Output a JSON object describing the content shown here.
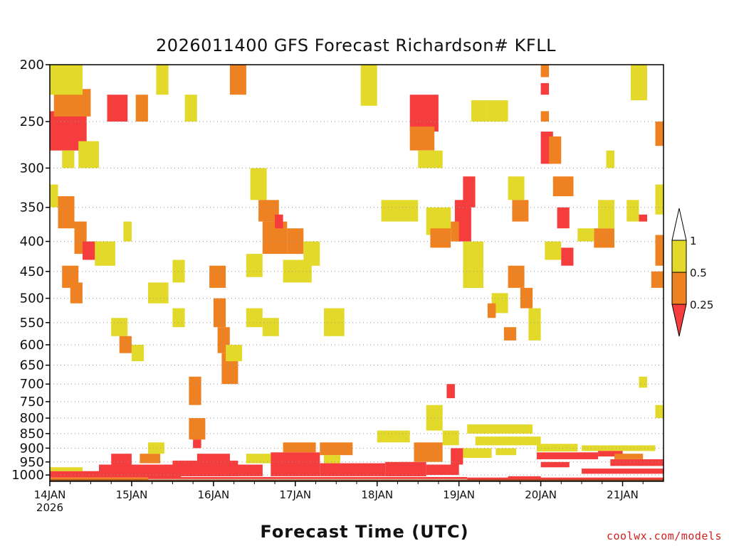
{
  "chart_data": {
    "type": "heatmap",
    "title": "2026011400 GFS Forecast Richardson# KFLL",
    "xlabel": "Forecast Time (UTC)",
    "ylabel": "",
    "x_start_label": "14JAN",
    "x_year_label": "2026",
    "x_ticks": [
      "14JAN",
      "15JAN",
      "16JAN",
      "17JAN",
      "18JAN",
      "19JAN",
      "20JAN",
      "21JAN"
    ],
    "x_range_days": [
      0,
      7.5
    ],
    "y_ticks": [
      200,
      250,
      300,
      350,
      400,
      450,
      500,
      550,
      600,
      650,
      700,
      750,
      800,
      850,
      900,
      950,
      1000
    ],
    "y_range_hpa": [
      200,
      1025
    ],
    "legend": {
      "placement": "right",
      "labels": [
        "1",
        "0.5",
        "0.25"
      ],
      "bins": [
        {
          "range": [
            0.5,
            1
          ],
          "color": "#e3d92b"
        },
        {
          "range": [
            0.25,
            0.5
          ],
          "color": "#ee8223"
        },
        {
          "range": [
            0,
            0.25
          ],
          "color": "#f53d3d"
        }
      ]
    },
    "colors": {
      "low": "#f53d3d",
      "mid": "#ee8223",
      "high": "#e3d92b",
      "ground": "#8a4b21",
      "grid": "#9a9a9a"
    },
    "cells": [
      {
        "t0": 0.0,
        "t1": 0.45,
        "p0": 240,
        "p1": 280,
        "c": "low"
      },
      {
        "t0": 0.05,
        "t1": 0.5,
        "p0": 220,
        "p1": 245,
        "c": "mid"
      },
      {
        "t0": 0.0,
        "t1": 0.4,
        "p0": 200,
        "p1": 225,
        "c": "high"
      },
      {
        "t0": 0.15,
        "t1": 0.3,
        "p0": 280,
        "p1": 300,
        "c": "high"
      },
      {
        "t0": 0.35,
        "t1": 0.6,
        "p0": 270,
        "p1": 300,
        "c": "high"
      },
      {
        "t0": 0.7,
        "t1": 0.95,
        "p0": 225,
        "p1": 250,
        "c": "low"
      },
      {
        "t0": 1.05,
        "t1": 1.2,
        "p0": 225,
        "p1": 250,
        "c": "mid"
      },
      {
        "t0": 1.3,
        "t1": 1.45,
        "p0": 200,
        "p1": 225,
        "c": "high"
      },
      {
        "t0": 1.65,
        "t1": 1.8,
        "p0": 225,
        "p1": 250,
        "c": "high"
      },
      {
        "t0": 2.2,
        "t1": 2.4,
        "p0": 200,
        "p1": 225,
        "c": "mid"
      },
      {
        "t0": 0.0,
        "t1": 0.1,
        "p0": 320,
        "p1": 350,
        "c": "high"
      },
      {
        "t0": 0.1,
        "t1": 0.3,
        "p0": 335,
        "p1": 380,
        "c": "mid"
      },
      {
        "t0": 0.3,
        "t1": 0.45,
        "p0": 370,
        "p1": 420,
        "c": "mid"
      },
      {
        "t0": 0.4,
        "t1": 0.6,
        "p0": 400,
        "p1": 430,
        "c": "low"
      },
      {
        "t0": 0.55,
        "t1": 0.8,
        "p0": 400,
        "p1": 440,
        "c": "high"
      },
      {
        "t0": 0.15,
        "t1": 0.35,
        "p0": 440,
        "p1": 480,
        "c": "mid"
      },
      {
        "t0": 0.25,
        "t1": 0.4,
        "p0": 470,
        "p1": 510,
        "c": "mid"
      },
      {
        "t0": 0.9,
        "t1": 1.0,
        "p0": 370,
        "p1": 400,
        "c": "high"
      },
      {
        "t0": 0.75,
        "t1": 0.95,
        "p0": 540,
        "p1": 580,
        "c": "high"
      },
      {
        "t0": 0.85,
        "t1": 1.0,
        "p0": 580,
        "p1": 620,
        "c": "mid"
      },
      {
        "t0": 1.0,
        "t1": 1.15,
        "p0": 600,
        "p1": 640,
        "c": "high"
      },
      {
        "t0": 1.2,
        "t1": 1.45,
        "p0": 470,
        "p1": 510,
        "c": "high"
      },
      {
        "t0": 1.5,
        "t1": 1.65,
        "p0": 430,
        "p1": 470,
        "c": "high"
      },
      {
        "t0": 1.5,
        "t1": 1.65,
        "p0": 520,
        "p1": 560,
        "c": "high"
      },
      {
        "t0": 1.7,
        "t1": 1.85,
        "p0": 680,
        "p1": 760,
        "c": "mid"
      },
      {
        "t0": 1.7,
        "t1": 1.9,
        "p0": 800,
        "p1": 870,
        "c": "mid"
      },
      {
        "t0": 1.75,
        "t1": 1.85,
        "p0": 870,
        "p1": 900,
        "c": "low"
      },
      {
        "t0": 1.95,
        "t1": 2.15,
        "p0": 440,
        "p1": 480,
        "c": "mid"
      },
      {
        "t0": 2.0,
        "t1": 2.15,
        "p0": 500,
        "p1": 560,
        "c": "mid"
      },
      {
        "t0": 2.05,
        "t1": 2.2,
        "p0": 560,
        "p1": 620,
        "c": "mid"
      },
      {
        "t0": 2.1,
        "t1": 2.3,
        "p0": 620,
        "p1": 700,
        "c": "mid"
      },
      {
        "t0": 2.15,
        "t1": 2.35,
        "p0": 600,
        "p1": 640,
        "c": "high"
      },
      {
        "t0": 2.4,
        "t1": 2.6,
        "p0": 520,
        "p1": 560,
        "c": "high"
      },
      {
        "t0": 2.4,
        "t1": 2.6,
        "p0": 420,
        "p1": 460,
        "c": "high"
      },
      {
        "t0": 2.45,
        "t1": 2.65,
        "p0": 300,
        "p1": 340,
        "c": "high"
      },
      {
        "t0": 2.55,
        "t1": 2.8,
        "p0": 340,
        "p1": 370,
        "c": "mid"
      },
      {
        "t0": 2.6,
        "t1": 2.9,
        "p0": 370,
        "p1": 420,
        "c": "mid"
      },
      {
        "t0": 2.75,
        "t1": 2.85,
        "p0": 360,
        "p1": 380,
        "c": "low"
      },
      {
        "t0": 2.9,
        "t1": 3.1,
        "p0": 380,
        "p1": 420,
        "c": "mid"
      },
      {
        "t0": 2.85,
        "t1": 3.2,
        "p0": 430,
        "p1": 470,
        "c": "high"
      },
      {
        "t0": 2.6,
        "t1": 2.8,
        "p0": 540,
        "p1": 580,
        "c": "high"
      },
      {
        "t0": 3.1,
        "t1": 3.3,
        "p0": 400,
        "p1": 440,
        "c": "high"
      },
      {
        "t0": 3.35,
        "t1": 3.6,
        "p0": 520,
        "p1": 580,
        "c": "high"
      },
      {
        "t0": 3.8,
        "t1": 4.0,
        "p0": 200,
        "p1": 235,
        "c": "high"
      },
      {
        "t0": 4.05,
        "t1": 4.5,
        "p0": 340,
        "p1": 370,
        "c": "high"
      },
      {
        "t0": 4.4,
        "t1": 4.75,
        "p0": 225,
        "p1": 260,
        "c": "low"
      },
      {
        "t0": 4.4,
        "t1": 4.7,
        "p0": 255,
        "p1": 280,
        "c": "mid"
      },
      {
        "t0": 4.5,
        "t1": 4.8,
        "p0": 280,
        "p1": 300,
        "c": "high"
      },
      {
        "t0": 4.6,
        "t1": 4.9,
        "p0": 350,
        "p1": 390,
        "c": "high"
      },
      {
        "t0": 4.65,
        "t1": 4.9,
        "p0": 380,
        "p1": 410,
        "c": "mid"
      },
      {
        "t0": 4.95,
        "t1": 5.15,
        "p0": 340,
        "p1": 400,
        "c": "low"
      },
      {
        "t0": 5.05,
        "t1": 5.2,
        "p0": 310,
        "p1": 350,
        "c": "low"
      },
      {
        "t0": 4.9,
        "t1": 5.0,
        "p0": 370,
        "p1": 400,
        "c": "mid"
      },
      {
        "t0": 5.05,
        "t1": 5.3,
        "p0": 400,
        "p1": 480,
        "c": "high"
      },
      {
        "t0": 5.15,
        "t1": 5.35,
        "p0": 230,
        "p1": 250,
        "c": "high"
      },
      {
        "t0": 5.35,
        "t1": 5.6,
        "p0": 230,
        "p1": 250,
        "c": "high"
      },
      {
        "t0": 5.6,
        "t1": 5.8,
        "p0": 310,
        "p1": 340,
        "c": "high"
      },
      {
        "t0": 5.65,
        "t1": 5.85,
        "p0": 340,
        "p1": 370,
        "c": "mid"
      },
      {
        "t0": 5.6,
        "t1": 5.8,
        "p0": 440,
        "p1": 480,
        "c": "mid"
      },
      {
        "t0": 5.75,
        "t1": 5.9,
        "p0": 480,
        "p1": 520,
        "c": "mid"
      },
      {
        "t0": 5.4,
        "t1": 5.6,
        "p0": 490,
        "p1": 530,
        "c": "high"
      },
      {
        "t0": 5.35,
        "t1": 5.45,
        "p0": 510,
        "p1": 540,
        "c": "mid"
      },
      {
        "t0": 5.55,
        "t1": 5.7,
        "p0": 560,
        "p1": 590,
        "c": "mid"
      },
      {
        "t0": 5.85,
        "t1": 6.0,
        "p0": 520,
        "p1": 590,
        "c": "high"
      },
      {
        "t0": 6.0,
        "t1": 6.1,
        "p0": 200,
        "p1": 210,
        "c": "mid"
      },
      {
        "t0": 6.0,
        "t1": 6.1,
        "p0": 215,
        "p1": 225,
        "c": "low"
      },
      {
        "t0": 6.0,
        "t1": 6.1,
        "p0": 240,
        "p1": 250,
        "c": "mid"
      },
      {
        "t0": 6.0,
        "t1": 6.15,
        "p0": 260,
        "p1": 295,
        "c": "low"
      },
      {
        "t0": 6.1,
        "t1": 6.25,
        "p0": 265,
        "p1": 295,
        "c": "mid"
      },
      {
        "t0": 6.15,
        "t1": 6.4,
        "p0": 310,
        "p1": 335,
        "c": "mid"
      },
      {
        "t0": 6.2,
        "t1": 6.35,
        "p0": 350,
        "p1": 380,
        "c": "low"
      },
      {
        "t0": 6.05,
        "t1": 6.25,
        "p0": 400,
        "p1": 430,
        "c": "high"
      },
      {
        "t0": 6.25,
        "t1": 6.4,
        "p0": 410,
        "p1": 440,
        "c": "low"
      },
      {
        "t0": 6.65,
        "t1": 6.9,
        "p0": 380,
        "p1": 410,
        "c": "mid"
      },
      {
        "t0": 6.7,
        "t1": 6.9,
        "p0": 340,
        "p1": 380,
        "c": "high"
      },
      {
        "t0": 6.45,
        "t1": 6.65,
        "p0": 380,
        "p1": 400,
        "c": "high"
      },
      {
        "t0": 6.8,
        "t1": 6.9,
        "p0": 280,
        "p1": 300,
        "c": "high"
      },
      {
        "t0": 7.1,
        "t1": 7.3,
        "p0": 200,
        "p1": 230,
        "c": "high"
      },
      {
        "t0": 7.05,
        "t1": 7.2,
        "p0": 340,
        "p1": 370,
        "c": "high"
      },
      {
        "t0": 7.2,
        "t1": 7.3,
        "p0": 360,
        "p1": 370,
        "c": "low"
      },
      {
        "t0": 7.4,
        "t1": 7.5,
        "p0": 250,
        "p1": 275,
        "c": "mid"
      },
      {
        "t0": 7.4,
        "t1": 7.5,
        "p0": 320,
        "p1": 360,
        "c": "high"
      },
      {
        "t0": 7.4,
        "t1": 7.5,
        "p0": 390,
        "p1": 440,
        "c": "mid"
      },
      {
        "t0": 7.35,
        "t1": 7.5,
        "p0": 450,
        "p1": 480,
        "c": "mid"
      },
      {
        "t0": 7.2,
        "t1": 7.3,
        "p0": 680,
        "p1": 710,
        "c": "high"
      },
      {
        "t0": 7.4,
        "t1": 7.5,
        "p0": 760,
        "p1": 800,
        "c": "high"
      },
      {
        "t0": 5.1,
        "t1": 5.9,
        "p0": 820,
        "p1": 850,
        "c": "high"
      },
      {
        "t0": 5.2,
        "t1": 6.0,
        "p0": 860,
        "p1": 890,
        "c": "high"
      },
      {
        "t0": 5.05,
        "t1": 5.4,
        "p0": 900,
        "p1": 935,
        "c": "high"
      },
      {
        "t0": 5.45,
        "t1": 5.7,
        "p0": 900,
        "p1": 925,
        "c": "high"
      },
      {
        "t0": 5.95,
        "t1": 6.7,
        "p0": 915,
        "p1": 940,
        "c": "low"
      },
      {
        "t0": 6.0,
        "t1": 6.35,
        "p0": 950,
        "p1": 970,
        "c": "low"
      },
      {
        "t0": 5.95,
        "t1": 6.45,
        "p0": 885,
        "p1": 912,
        "c": "high"
      },
      {
        "t0": 6.5,
        "t1": 7.4,
        "p0": 890,
        "p1": 910,
        "c": "high"
      },
      {
        "t0": 6.7,
        "t1": 7.0,
        "p0": 910,
        "p1": 930,
        "c": "low"
      },
      {
        "t0": 6.85,
        "t1": 7.5,
        "p0": 940,
        "p1": 965,
        "c": "low"
      },
      {
        "t0": 6.5,
        "t1": 7.5,
        "p0": 975,
        "p1": 995,
        "c": "low"
      },
      {
        "t0": 6.9,
        "t1": 7.25,
        "p0": 920,
        "p1": 940,
        "c": "mid"
      },
      {
        "t0": 5.6,
        "t1": 6.0,
        "p0": 1005,
        "p1": 1015,
        "c": "low"
      },
      {
        "t0": 0.0,
        "t1": 0.6,
        "p0": 985,
        "p1": 1010,
        "c": "low"
      },
      {
        "t0": 0.0,
        "t1": 0.4,
        "p0": 970,
        "p1": 985,
        "c": "high"
      },
      {
        "t0": 0.6,
        "t1": 1.6,
        "p0": 960,
        "p1": 1010,
        "c": "low"
      },
      {
        "t0": 0.75,
        "t1": 1.0,
        "p0": 920,
        "p1": 960,
        "c": "low"
      },
      {
        "t0": 1.1,
        "t1": 1.35,
        "p0": 920,
        "p1": 955,
        "c": "mid"
      },
      {
        "t0": 1.2,
        "t1": 1.4,
        "p0": 880,
        "p1": 920,
        "c": "high"
      },
      {
        "t0": 1.5,
        "t1": 2.3,
        "p0": 945,
        "p1": 1005,
        "c": "low"
      },
      {
        "t0": 1.8,
        "t1": 2.2,
        "p0": 920,
        "p1": 950,
        "c": "low"
      },
      {
        "t0": 2.2,
        "t1": 2.6,
        "p0": 960,
        "p1": 1005,
        "c": "low"
      },
      {
        "t0": 2.4,
        "t1": 2.7,
        "p0": 920,
        "p1": 955,
        "c": "high"
      },
      {
        "t0": 2.7,
        "t1": 3.3,
        "p0": 915,
        "p1": 1005,
        "c": "low"
      },
      {
        "t0": 2.85,
        "t1": 3.25,
        "p0": 880,
        "p1": 915,
        "c": "mid"
      },
      {
        "t0": 3.3,
        "t1": 3.7,
        "p0": 880,
        "p1": 925,
        "c": "mid"
      },
      {
        "t0": 3.35,
        "t1": 3.55,
        "p0": 925,
        "p1": 955,
        "c": "high"
      },
      {
        "t0": 3.3,
        "t1": 4.1,
        "p0": 955,
        "p1": 1005,
        "c": "low"
      },
      {
        "t0": 4.0,
        "t1": 4.4,
        "p0": 840,
        "p1": 880,
        "c": "high"
      },
      {
        "t0": 4.1,
        "t1": 4.6,
        "p0": 950,
        "p1": 1005,
        "c": "low"
      },
      {
        "t0": 4.45,
        "t1": 4.8,
        "p0": 880,
        "p1": 950,
        "c": "mid"
      },
      {
        "t0": 4.6,
        "t1": 5.0,
        "p0": 960,
        "p1": 1000,
        "c": "low"
      },
      {
        "t0": 4.9,
        "t1": 5.05,
        "p0": 900,
        "p1": 960,
        "c": "low"
      },
      {
        "t0": 4.8,
        "t1": 5.0,
        "p0": 840,
        "p1": 890,
        "c": "high"
      },
      {
        "t0": 4.6,
        "t1": 4.8,
        "p0": 760,
        "p1": 840,
        "c": "high"
      },
      {
        "t0": 4.85,
        "t1": 4.95,
        "p0": 700,
        "p1": 740,
        "c": "low"
      },
      {
        "t0": 0.0,
        "t1": 1.2,
        "p0": 1010,
        "p1": 1018,
        "c": "mid"
      },
      {
        "t0": 1.2,
        "t1": 5.1,
        "p0": 1008,
        "p1": 1016,
        "c": "low"
      },
      {
        "t0": 5.1,
        "t1": 7.5,
        "p0": 1010,
        "p1": 1018,
        "c": "low"
      },
      {
        "t0": 0.0,
        "t1": 7.5,
        "p0": 1018,
        "p1": 1025,
        "c": "ground"
      }
    ]
  },
  "credit": "coolwx.com/models"
}
